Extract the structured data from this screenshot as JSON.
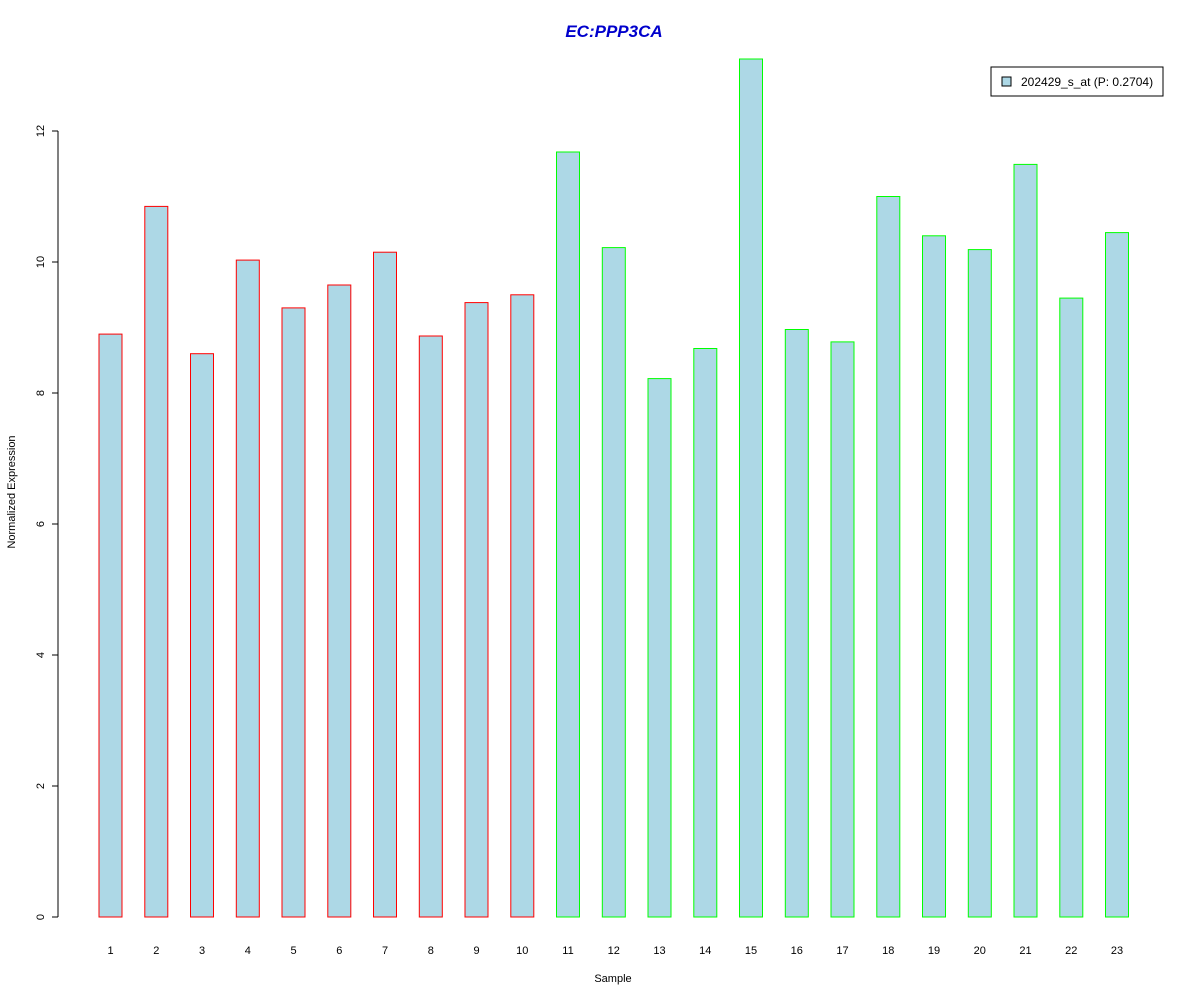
{
  "chart_data": {
    "type": "bar",
    "title": "EC:PPP3CA",
    "title_color": "#0000cc",
    "xlabel": "Sample",
    "ylabel": "Normalized Expression",
    "categories": [
      "1",
      "2",
      "3",
      "4",
      "5",
      "6",
      "7",
      "8",
      "9",
      "10",
      "11",
      "12",
      "13",
      "14",
      "15",
      "16",
      "17",
      "18",
      "19",
      "20",
      "21",
      "22",
      "23"
    ],
    "series": [
      {
        "name": "202429_s_at (P: 0.2704)",
        "values": [
          8.9,
          10.85,
          8.6,
          10.03,
          9.3,
          9.65,
          10.15,
          8.87,
          9.38,
          9.5,
          11.68,
          10.22,
          8.22,
          8.68,
          13.1,
          8.97,
          8.78,
          11.0,
          10.4,
          10.19,
          11.49,
          9.45,
          10.45
        ],
        "fill": "#add8e6",
        "group_outline_colors": [
          "#ff0000",
          "#ff0000",
          "#ff0000",
          "#ff0000",
          "#ff0000",
          "#ff0000",
          "#ff0000",
          "#ff0000",
          "#ff0000",
          "#ff0000",
          "#00ff00",
          "#00ff00",
          "#00ff00",
          "#00ff00",
          "#00ff00",
          "#00ff00",
          "#00ff00",
          "#00ff00",
          "#00ff00",
          "#00ff00",
          "#00ff00",
          "#00ff00",
          "#00ff00"
        ]
      }
    ],
    "yticks": [
      "0",
      "2",
      "4",
      "6",
      "8",
      "10",
      "12"
    ],
    "ylim": [
      0,
      13.1
    ],
    "grid": false,
    "legend_position": "top-right"
  }
}
